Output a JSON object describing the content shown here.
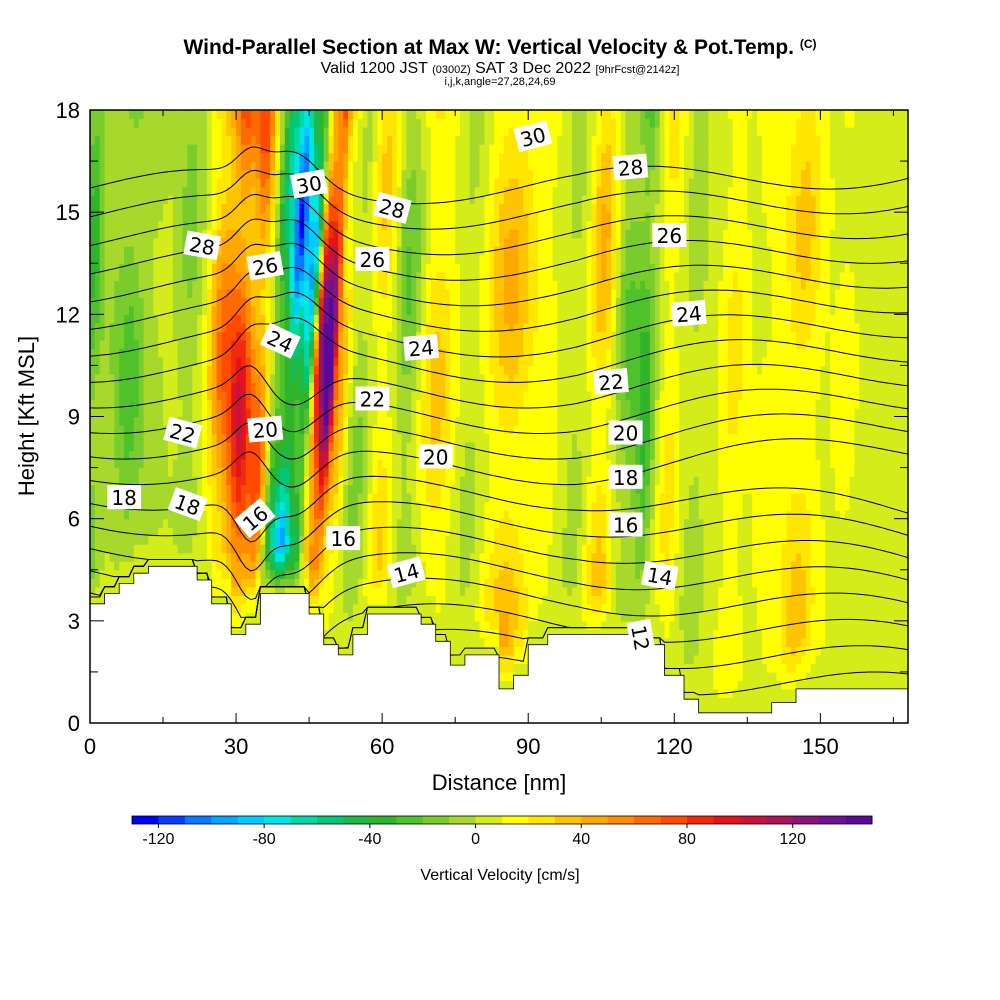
{
  "title": {
    "main": "Wind-Parallel Section at Max W: Vertical Velocity & Pot.Temp.",
    "main_suffix": "(C)",
    "valid_prefix": "Valid 1200 JST",
    "valid_utc": "(0300Z)",
    "valid_date": "SAT 3 Dec 2022",
    "forecast": "[9hrFcst@2142z]",
    "ijk": "i,j,k,angle=27,28,24,69"
  },
  "chart_data": {
    "type": "heatmap",
    "xlabel": "Distance [nm]",
    "ylabel": "Height [Kft MSL]",
    "xlim": [
      0,
      168
    ],
    "ylim": [
      0,
      18
    ],
    "x_ticks": [
      "0",
      "30",
      "60",
      "90",
      "120",
      "150"
    ],
    "x_tick_values": [
      0,
      30,
      60,
      90,
      120,
      150
    ],
    "y_ticks": [
      "0",
      "3",
      "6",
      "9",
      "12",
      "15",
      "18"
    ],
    "y_tick_values": [
      0,
      3,
      6,
      9,
      12,
      15,
      18
    ],
    "colorbar": {
      "label": "Vertical Velocity [cm/s]",
      "tick_labels": [
        "-120",
        "-80",
        "-40",
        "0",
        "40",
        "80",
        "120"
      ],
      "tick_values": [
        -120,
        -80,
        -40,
        0,
        40,
        80,
        120
      ],
      "range": [
        -130,
        150
      ],
      "step": 10,
      "colors": [
        "#0000ff",
        "#0a3cff",
        "#0a78ff",
        "#00a6ff",
        "#00ccff",
        "#00e6e6",
        "#00d9a6",
        "#00c878",
        "#1dba4a",
        "#2fb52c",
        "#4ec22a",
        "#78cc2c",
        "#a6d92c",
        "#d4ec1a",
        "#ffff00",
        "#ffe600",
        "#ffc400",
        "#ffa800",
        "#ff8c00",
        "#ff6a00",
        "#ff4a00",
        "#f02a0a",
        "#e0141e",
        "#c8143c",
        "#aa145a",
        "#8c1478",
        "#6e1490",
        "#5a0a9a"
      ]
    },
    "velocity_field": {
      "description_units": "cm/s",
      "background": 5,
      "columns": [
        {
          "x": 0,
          "w": 2,
          "v": -40
        },
        {
          "x": 4,
          "w": 3,
          "v": -10
        },
        {
          "x": 8,
          "w": 3,
          "v": -30
        },
        {
          "x": 13,
          "w": 3,
          "v": -10
        },
        {
          "x": 20,
          "w": 3,
          "v": -20
        },
        {
          "x": 27,
          "w": 3,
          "v": 60
        },
        {
          "x": 31,
          "w": 2.5,
          "v": 90
        },
        {
          "x": 35,
          "w": 2,
          "v": 70
        },
        {
          "x": 38,
          "w": 2,
          "v": -60
        },
        {
          "x": 41,
          "w": 1.8,
          "v": -120
        },
        {
          "x": 44,
          "w": 1.5,
          "v": -90
        },
        {
          "x": 46.5,
          "w": 1.3,
          "v": 110
        },
        {
          "x": 48.5,
          "w": 1.3,
          "v": 150
        },
        {
          "x": 51,
          "w": 2,
          "v": 40
        },
        {
          "x": 55,
          "w": 3,
          "v": -20
        },
        {
          "x": 60,
          "w": 3,
          "v": 30
        },
        {
          "x": 65,
          "w": 3,
          "v": -30
        },
        {
          "x": 71,
          "w": 4,
          "v": 30
        },
        {
          "x": 78,
          "w": 3,
          "v": -10
        },
        {
          "x": 86,
          "w": 5,
          "v": 40
        },
        {
          "x": 94,
          "w": 3,
          "v": 10
        },
        {
          "x": 100,
          "w": 3,
          "v": -10
        },
        {
          "x": 105,
          "w": 3,
          "v": 40
        },
        {
          "x": 110,
          "w": 3,
          "v": -30
        },
        {
          "x": 114,
          "w": 2,
          "v": -40
        },
        {
          "x": 119,
          "w": 2.5,
          "v": 20
        },
        {
          "x": 124,
          "w": 3,
          "v": -10
        },
        {
          "x": 132,
          "w": 3,
          "v": 20
        },
        {
          "x": 139,
          "w": 3,
          "v": 10
        },
        {
          "x": 146,
          "w": 4,
          "v": 30
        },
        {
          "x": 155,
          "w": 3,
          "v": 10
        },
        {
          "x": 163,
          "w": 3,
          "v": 0
        }
      ]
    },
    "terrain_kft": [
      [
        0,
        3.5
      ],
      [
        3,
        3.5
      ],
      [
        3,
        3.8
      ],
      [
        6,
        3.8
      ],
      [
        6,
        4.1
      ],
      [
        9,
        4.1
      ],
      [
        9,
        4.4
      ],
      [
        12,
        4.4
      ],
      [
        12,
        4.6
      ],
      [
        22,
        4.6
      ],
      [
        22,
        4.2
      ],
      [
        25,
        4.2
      ],
      [
        25,
        3.5
      ],
      [
        29,
        3.5
      ],
      [
        29,
        2.6
      ],
      [
        32,
        2.6
      ],
      [
        32,
        2.9
      ],
      [
        35,
        2.9
      ],
      [
        35,
        3.8
      ],
      [
        45,
        3.8
      ],
      [
        45,
        3.2
      ],
      [
        48,
        3.2
      ],
      [
        48,
        2.3
      ],
      [
        51,
        2.3
      ],
      [
        51,
        2.0
      ],
      [
        54,
        2.0
      ],
      [
        54,
        2.6
      ],
      [
        57,
        2.6
      ],
      [
        57,
        3.2
      ],
      [
        68,
        3.2
      ],
      [
        68,
        2.9
      ],
      [
        71,
        2.9
      ],
      [
        71,
        2.4
      ],
      [
        74,
        2.4
      ],
      [
        74,
        1.7
      ],
      [
        77,
        1.7
      ],
      [
        77,
        2.0
      ],
      [
        84,
        2.0
      ],
      [
        84,
        1.0
      ],
      [
        87,
        1.0
      ],
      [
        87,
        1.4
      ],
      [
        90,
        1.4
      ],
      [
        90,
        2.3
      ],
      [
        94,
        2.3
      ],
      [
        94,
        2.6
      ],
      [
        112,
        2.6
      ],
      [
        112,
        2.3
      ],
      [
        118,
        2.3
      ],
      [
        118,
        1.4
      ],
      [
        122,
        1.4
      ],
      [
        122,
        0.7
      ],
      [
        125,
        0.7
      ],
      [
        125,
        0.3
      ],
      [
        140,
        0.3
      ],
      [
        140,
        0.6
      ],
      [
        145,
        0.6
      ],
      [
        145,
        1.0
      ],
      [
        168,
        1.0
      ]
    ],
    "theta_contours": {
      "units": "C",
      "levels": [
        12,
        13,
        14,
        15,
        16,
        17,
        18,
        19,
        20,
        21,
        22,
        23,
        24,
        25,
        26,
        27,
        28,
        29,
        30,
        31
      ],
      "labels": [
        {
          "text": "18",
          "x": 7,
          "y": 6.6,
          "angle": 0
        },
        {
          "text": "18",
          "x": 20,
          "y": 6.4,
          "angle": 20
        },
        {
          "text": "22",
          "x": 19,
          "y": 8.5,
          "angle": 15
        },
        {
          "text": "28",
          "x": 23,
          "y": 14.0,
          "angle": 10
        },
        {
          "text": "16",
          "x": 34,
          "y": 6.0,
          "angle": -40
        },
        {
          "text": "20",
          "x": 36,
          "y": 8.6,
          "angle": -5
        },
        {
          "text": "24",
          "x": 39,
          "y": 11.2,
          "angle": 25
        },
        {
          "text": "26",
          "x": 36,
          "y": 13.4,
          "angle": -10
        },
        {
          "text": "30",
          "x": 45,
          "y": 15.8,
          "angle": -10
        },
        {
          "text": "16",
          "x": 52,
          "y": 5.4,
          "angle": 0
        },
        {
          "text": "22",
          "x": 58,
          "y": 9.5,
          "angle": 0
        },
        {
          "text": "26",
          "x": 58,
          "y": 13.6,
          "angle": 0
        },
        {
          "text": "28",
          "x": 62,
          "y": 15.1,
          "angle": 15
        },
        {
          "text": "24",
          "x": 68,
          "y": 11.0,
          "angle": -5
        },
        {
          "text": "20",
          "x": 71,
          "y": 7.8,
          "angle": 0
        },
        {
          "text": "14",
          "x": 65,
          "y": 4.4,
          "angle": -15
        },
        {
          "text": "30",
          "x": 91,
          "y": 17.2,
          "angle": -15
        },
        {
          "text": "28",
          "x": 111,
          "y": 16.3,
          "angle": -5
        },
        {
          "text": "26",
          "x": 119,
          "y": 14.3,
          "angle": 0
        },
        {
          "text": "24",
          "x": 123,
          "y": 12.0,
          "angle": -5
        },
        {
          "text": "22",
          "x": 107,
          "y": 10.0,
          "angle": -5
        },
        {
          "text": "20",
          "x": 110,
          "y": 8.5,
          "angle": 0
        },
        {
          "text": "18",
          "x": 110,
          "y": 7.2,
          "angle": 0
        },
        {
          "text": "16",
          "x": 110,
          "y": 5.8,
          "angle": 0
        },
        {
          "text": "14",
          "x": 117,
          "y": 4.3,
          "angle": 10
        },
        {
          "text": "12",
          "x": 113,
          "y": 2.5,
          "angle": 80
        }
      ]
    }
  }
}
